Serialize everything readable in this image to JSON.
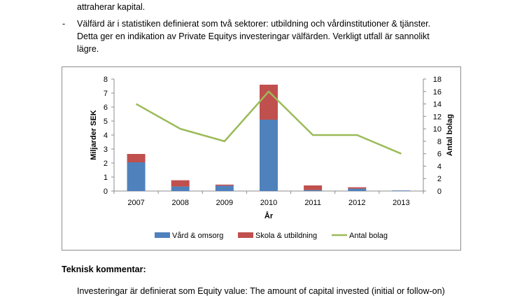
{
  "document": {
    "line_top": "attraherar kapital.",
    "bullet_dash": "-",
    "line_2": "Välfärd är i statistiken definierat som två sektorer: utbildning och vårdinstitutioner & tjänster.",
    "line_3": "Detta ger en indikation av Private Equitys investeringar välfärden. Verkligt utfall är sannolikt",
    "line_4": "lägre.",
    "heading": "Teknisk kommentar:",
    "footnote": "Investeringar är definierat som Equity value: The amount of capital invested (initial or follow-on)"
  },
  "colors": {
    "vard": "#4f81bd",
    "skola": "#c0504d",
    "antal": "#9bbb59",
    "grid": "#8c8c8c"
  },
  "chart_data": {
    "type": "bar",
    "categories": [
      "2007",
      "2008",
      "2009",
      "2010",
      "2011",
      "2012",
      "2013"
    ],
    "series": [
      {
        "name": "Vård & omsorg",
        "type": "bar",
        "stack": "sek",
        "axis": "left",
        "values": [
          2.05,
          0.32,
          0.38,
          5.1,
          0.07,
          0.17,
          0.04
        ]
      },
      {
        "name": "Skola & utbildning",
        "type": "bar",
        "stack": "sek",
        "axis": "left",
        "values": [
          0.6,
          0.45,
          0.08,
          2.5,
          0.33,
          0.1,
          0.0
        ]
      },
      {
        "name": "Antal bolag",
        "type": "line",
        "axis": "right",
        "values": [
          14,
          10,
          8,
          16,
          9,
          9,
          6
        ]
      }
    ],
    "xlabel": "År",
    "ylabel": "Miljarder SEK",
    "y2label": "Antal bolag",
    "ylim": [
      0,
      8
    ],
    "y2lim": [
      0,
      18
    ],
    "yticks": [
      "0",
      "1",
      "2",
      "3",
      "4",
      "5",
      "6",
      "7",
      "8"
    ],
    "y2ticks": [
      "0",
      "2",
      "4",
      "6",
      "8",
      "10",
      "12",
      "14",
      "16",
      "18"
    ],
    "legend_position": "bottom",
    "grid": false
  }
}
